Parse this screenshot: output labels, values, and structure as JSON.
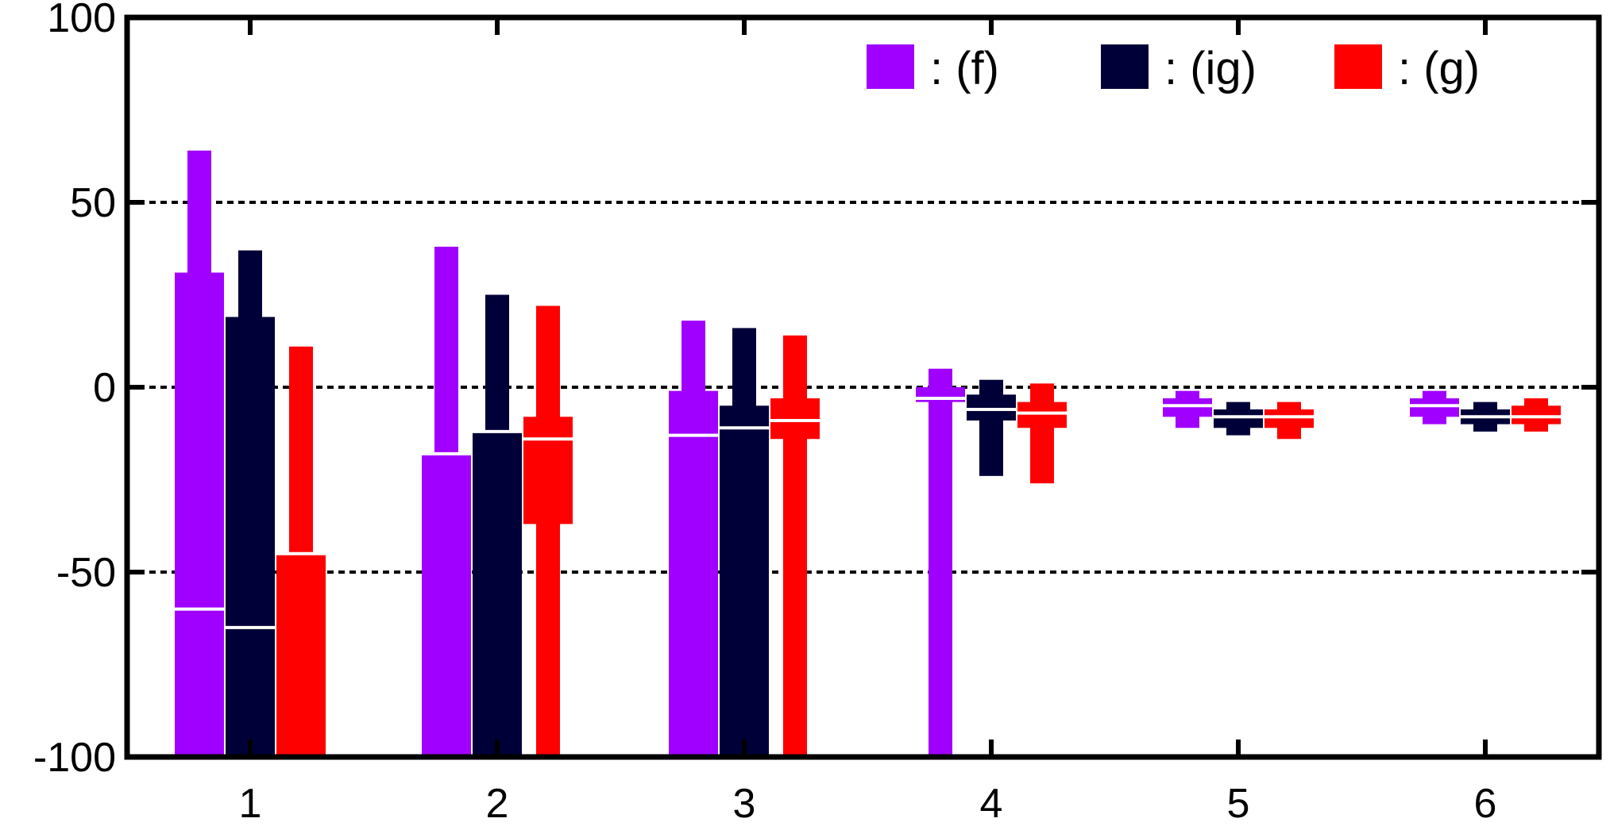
{
  "chart_data": {
    "type": "box",
    "title": "",
    "xlabel": "",
    "ylabel": "",
    "ylim": [
      -100,
      100
    ],
    "yticks": [
      -100,
      -50,
      0,
      50,
      100
    ],
    "grid": {
      "y": [
        -50,
        0,
        50
      ],
      "style": "dotted"
    },
    "legend_position": "top-right",
    "categories": [
      "1",
      "2",
      "3",
      "4",
      "5",
      "6"
    ],
    "series": [
      {
        "name": ": (f)",
        "color": "#a000ff",
        "boxes": [
          {
            "whisker_low": -100,
            "q1": -100,
            "median": -60,
            "q3": 31,
            "whisker_high": 64
          },
          {
            "whisker_low": -100,
            "q1": -100,
            "median": -18,
            "q3": -18,
            "whisker_high": 38
          },
          {
            "whisker_low": -100,
            "q1": -100,
            "median": -13,
            "q3": -1,
            "whisker_high": 18
          },
          {
            "whisker_low": -100,
            "q1": -4,
            "median": -3,
            "q3": 0,
            "whisker_high": 5
          },
          {
            "whisker_low": -11,
            "q1": -8,
            "median": -5,
            "q3": -3,
            "whisker_high": -1
          },
          {
            "whisker_low": -10,
            "q1": -8,
            "median": -5,
            "q3": -3,
            "whisker_high": -1
          }
        ]
      },
      {
        "name": ": (ig)",
        "color": "#000038",
        "boxes": [
          {
            "whisker_low": -100,
            "q1": -100,
            "median": -65,
            "q3": 19,
            "whisker_high": 37
          },
          {
            "whisker_low": -100,
            "q1": -100,
            "median": -12,
            "q3": -12,
            "whisker_high": 25
          },
          {
            "whisker_low": -100,
            "q1": -100,
            "median": -11,
            "q3": -5,
            "whisker_high": 16
          },
          {
            "whisker_low": -24,
            "q1": -9,
            "median": -6,
            "q3": -2,
            "whisker_high": 2
          },
          {
            "whisker_low": -13,
            "q1": -11,
            "median": -8,
            "q3": -6,
            "whisker_high": -4
          },
          {
            "whisker_low": -12,
            "q1": -10,
            "median": -8,
            "q3": -6,
            "whisker_high": -4
          }
        ]
      },
      {
        "name": ": (g)",
        "color": "#ff0000",
        "boxes": [
          {
            "whisker_low": -100,
            "q1": -100,
            "median": -45,
            "q3": -45,
            "whisker_high": 11
          },
          {
            "whisker_low": -100,
            "q1": -37,
            "median": -14,
            "q3": -8,
            "whisker_high": 22
          },
          {
            "whisker_low": -100,
            "q1": -14,
            "median": -9,
            "q3": -3,
            "whisker_high": 14
          },
          {
            "whisker_low": -26,
            "q1": -11,
            "median": -7,
            "q3": -4,
            "whisker_high": 1
          },
          {
            "whisker_low": -14,
            "q1": -11,
            "median": -8,
            "q3": -6,
            "whisker_high": -4
          },
          {
            "whisker_low": -12,
            "q1": -10,
            "median": -8,
            "q3": -5,
            "whisker_high": -3
          }
        ]
      }
    ]
  }
}
